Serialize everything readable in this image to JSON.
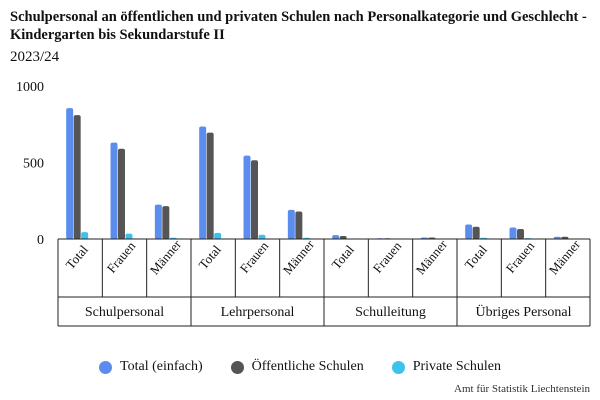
{
  "chart_data": {
    "type": "bar",
    "title": "Schulpersonal an öffentlichen und privaten Schulen nach Personalkategorie und Geschlecht - Kindergarten bis Sekundarstufe II",
    "subtitle": "2023/24",
    "source": "Amt für Statistik Liechtenstein",
    "ylim": [
      0,
      1000
    ],
    "yticks": [
      0,
      500,
      1000
    ],
    "grid": false,
    "legend_position": "bottom",
    "groups": [
      {
        "label": "Schulpersonal",
        "categories": [
          "Total",
          "Frauen",
          "Männer"
        ]
      },
      {
        "label": "Lehrpersonal",
        "categories": [
          "Total",
          "Frauen",
          "Männer"
        ]
      },
      {
        "label": "Schulleitung",
        "categories": [
          "Total",
          "Frauen",
          "Männer"
        ]
      },
      {
        "label": "Übriges Personal",
        "categories": [
          "Total",
          "Frauen",
          "Männer"
        ]
      }
    ],
    "series": [
      {
        "name": "Total (einfach)",
        "color": "#5b8def",
        "values": [
          855,
          630,
          225,
          735,
          545,
          190,
          25,
          5,
          10,
          95,
          75,
          15
        ]
      },
      {
        "name": "Öffentliche Schulen",
        "color": "#555555",
        "values": [
          810,
          590,
          215,
          695,
          515,
          180,
          20,
          5,
          10,
          80,
          65,
          15
        ]
      },
      {
        "name": "Private Schulen",
        "color": "#3fc1ee",
        "values": [
          45,
          35,
          8,
          40,
          28,
          8,
          3,
          1,
          1,
          8,
          6,
          1
        ]
      }
    ]
  }
}
